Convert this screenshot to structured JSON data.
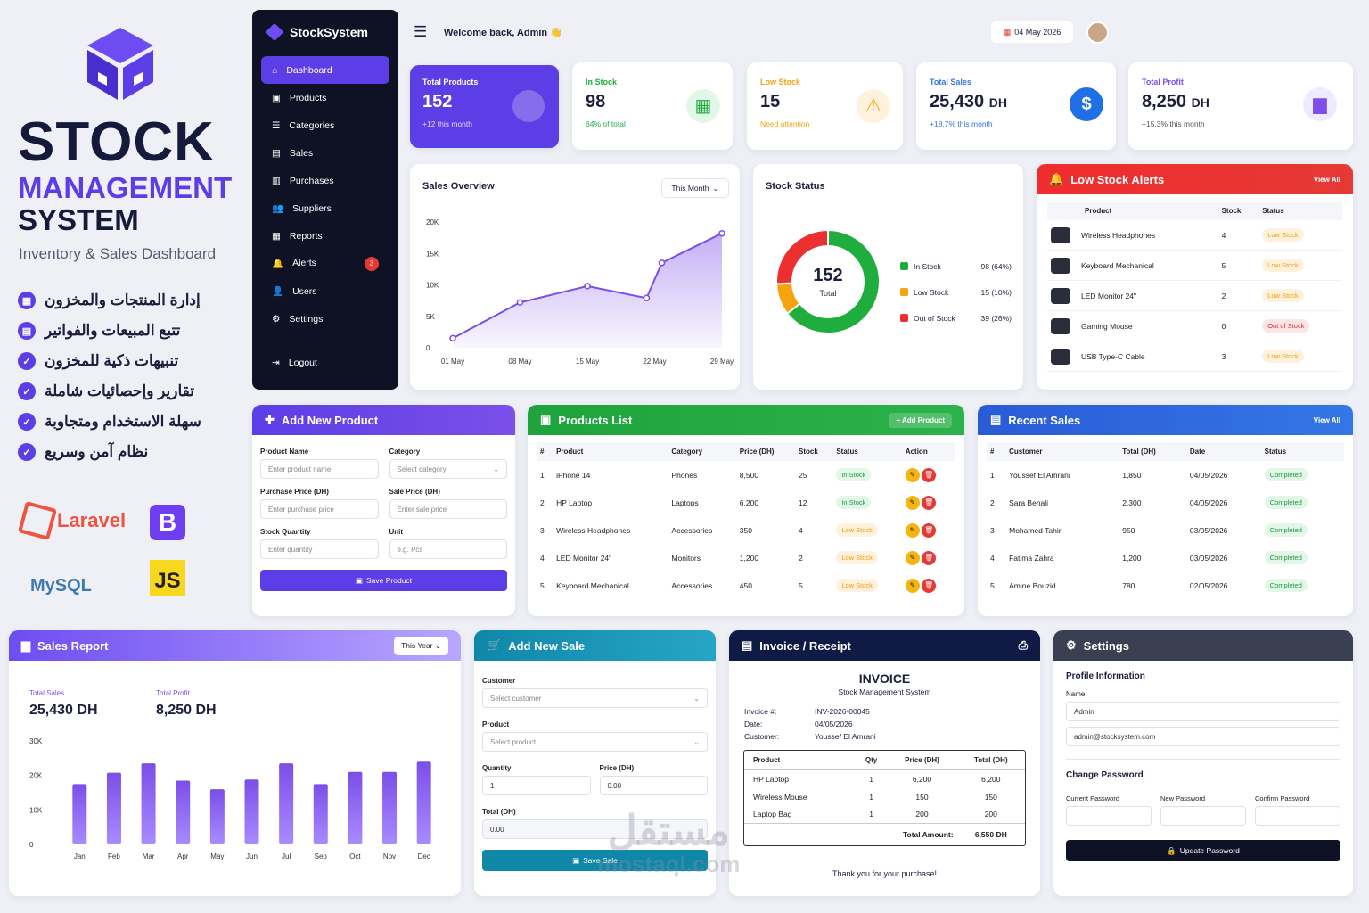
{
  "brand": {
    "title": "STOCK",
    "subtitle": "MANAGEMENT",
    "system": "SYSTEM",
    "tagline": "Inventory & Sales Dashboard"
  },
  "features": [
    "إدارة المنتجات والمخزون",
    "تتبع المبيعات والفواتير",
    "تنبيهات ذكية للمخزون",
    "تقارير وإحصائيات شاملة",
    "سهلة الاستخدام ومتجاوبة",
    "نظام آمن وسريع"
  ],
  "tech": {
    "laravel": "Laravel",
    "bootstrap": "B",
    "mysql": "MySQL",
    "js": "JS"
  },
  "sidebar": {
    "app": "StockSystem",
    "items": [
      "Dashboard",
      "Products",
      "Categories",
      "Sales",
      "Purchases",
      "Suppliers",
      "Reports",
      "Alerts",
      "Users",
      "Settings"
    ],
    "alerts_badge": "3",
    "logout": "Logout"
  },
  "topbar": {
    "welcome": "Welcome back, Admin 👋",
    "date": "04 May 2026"
  },
  "stats": [
    {
      "label": "Total Products",
      "value": "152",
      "sub": "+12 this month"
    },
    {
      "label": "In Stock",
      "value": "98",
      "sub": "64% of total"
    },
    {
      "label": "Low Stock",
      "value": "15",
      "sub": "Need attention"
    },
    {
      "label": "Total Sales",
      "value": "25,430",
      "unit": "DH",
      "sub": "+18.7% this month"
    },
    {
      "label": "Total Profit",
      "value": "8,250",
      "unit": "DH",
      "sub": "+15.3% this month"
    }
  ],
  "sales_overview": {
    "title": "Sales Overview",
    "filter": "This Month",
    "colors": {
      "line": "#7b4fe8"
    }
  },
  "chart_data": [
    {
      "type": "line",
      "title": "Sales Overview",
      "x": [
        "01 May",
        "08 May",
        "15 May",
        "22 May",
        "29 May"
      ],
      "points": [
        {
          "x": "01 May",
          "y": 1500
        },
        {
          "x": "08 May",
          "y": 7200
        },
        {
          "x": "15 May",
          "y": 9800
        },
        {
          "x": "22 May",
          "y": 7900
        },
        {
          "x": "29 May",
          "y": 13500
        },
        {
          "x": "29 May+",
          "y": 18200
        }
      ],
      "yticks": [
        "0",
        "5K",
        "10K",
        "15K",
        "20K"
      ],
      "ylim": [
        0,
        20000
      ]
    },
    {
      "type": "pie",
      "title": "Stock Status",
      "center_value": "152",
      "center_label": "Total",
      "slices": [
        {
          "name": "In Stock",
          "value": 98,
          "label": "98 (64%)",
          "color": "#1fae3e"
        },
        {
          "name": "Low Stock",
          "value": 15,
          "label": "15 (10%)",
          "color": "#f5a30f"
        },
        {
          "name": "Out of Stock",
          "value": 39,
          "label": "39 (26%)",
          "color": "#ec2f2f"
        }
      ]
    },
    {
      "type": "bar",
      "title": "Sales Report",
      "categories": [
        "Jan",
        "Feb",
        "Mar",
        "Apr",
        "May",
        "Jun",
        "Jul",
        "Sep",
        "Oct",
        "Nov",
        "Dec"
      ],
      "values": [
        17500,
        20800,
        23500,
        18500,
        16000,
        18800,
        23500,
        17500,
        21000,
        21000,
        24000
      ],
      "yticks": [
        "0",
        "10K",
        "20K",
        "30K"
      ],
      "ylim": [
        0,
        30000
      ]
    }
  ],
  "stock_status": {
    "title": "Stock Status"
  },
  "low_stock": {
    "title": "Low Stock Alerts",
    "view_all": "View All",
    "headers": [
      "Product",
      "Stock",
      "Status"
    ],
    "rows": [
      {
        "product": "Wireless Headphones",
        "stock": "4",
        "status": "Low Stock",
        "type": "low"
      },
      {
        "product": "Keyboard Mechanical",
        "stock": "5",
        "status": "Low Stock",
        "type": "low"
      },
      {
        "product": "LED Monitor 24\"",
        "stock": "2",
        "status": "Low Stock",
        "type": "low"
      },
      {
        "product": "Gaming Mouse",
        "stock": "0",
        "status": "Out of Stock",
        "type": "out"
      },
      {
        "product": "USB Type-C Cable",
        "stock": "3",
        "status": "Low Stock",
        "type": "low"
      }
    ]
  },
  "add_product": {
    "title": "Add New Product",
    "name_label": "Product Name",
    "name_ph": "Enter product name",
    "cat_label": "Category",
    "cat_ph": "Select category",
    "pp_label": "Purchase Price (DH)",
    "pp_ph": "Enter purchase price",
    "sp_label": "Sale Price (DH)",
    "sp_ph": "Enter sale price",
    "qty_label": "Stock Quantity",
    "qty_ph": "Enter quantity",
    "unit_label": "Unit",
    "unit_ph": "e.g. Pcs",
    "save": "Save Product"
  },
  "products": {
    "title": "Products List",
    "add": "+ Add Product",
    "headers": [
      "#",
      "Product",
      "Category",
      "Price (DH)",
      "Stock",
      "Status",
      "Action"
    ],
    "rows": [
      {
        "n": "1",
        "product": "iPhone 14",
        "category": "Phones",
        "price": "8,500",
        "stock": "25",
        "status": "In Stock",
        "type": "ok"
      },
      {
        "n": "2",
        "product": "HP Laptop",
        "category": "Laptops",
        "price": "6,200",
        "stock": "12",
        "status": "In Stock",
        "type": "ok"
      },
      {
        "n": "3",
        "product": "Wireless Headphones",
        "category": "Accessories",
        "price": "350",
        "stock": "4",
        "status": "Low Stock",
        "type": "low"
      },
      {
        "n": "4",
        "product": "LED Monitor 24\"",
        "category": "Monitors",
        "price": "1,200",
        "stock": "2",
        "status": "Low Stock",
        "type": "low"
      },
      {
        "n": "5",
        "product": "Keyboard Mechanical",
        "category": "Accessories",
        "price": "450",
        "stock": "5",
        "status": "Low Stock",
        "type": "low"
      }
    ]
  },
  "recent_sales": {
    "title": "Recent Sales",
    "view_all": "View All",
    "headers": [
      "#",
      "Customer",
      "Total (DH)",
      "Date",
      "Status"
    ],
    "rows": [
      {
        "n": "1",
        "customer": "Youssef El Amrani",
        "total": "1,850",
        "date": "04/05/2026",
        "status": "Completed"
      },
      {
        "n": "2",
        "customer": "Sara Benali",
        "total": "2,300",
        "date": "04/05/2026",
        "status": "Completed"
      },
      {
        "n": "3",
        "customer": "Mohamed Tahiri",
        "total": "950",
        "date": "03/05/2026",
        "status": "Completed"
      },
      {
        "n": "4",
        "customer": "Fatima Zahra",
        "total": "1,200",
        "date": "03/05/2026",
        "status": "Completed"
      },
      {
        "n": "5",
        "customer": "Amine Bouzid",
        "total": "780",
        "date": "02/05/2026",
        "status": "Completed"
      }
    ]
  },
  "sales_report": {
    "title": "Sales Report",
    "filter": "This Year",
    "total_sales_label": "Total Sales",
    "total_sales": "25,430 DH",
    "total_profit_label": "Total Profit",
    "total_profit": "8,250 DH"
  },
  "add_sale": {
    "title": "Add New Sale",
    "customer_label": "Customer",
    "customer_ph": "Select customer",
    "product_label": "Product",
    "product_ph": "Select product",
    "qty_label": "Quantity",
    "qty_val": "1",
    "price_label": "Price (DH)",
    "price_val": "0.00",
    "total_label": "Total (DH)",
    "total_val": "0.00",
    "save": "Save Sale"
  },
  "invoice": {
    "title": "Invoice / Receipt",
    "heading": "INVOICE",
    "company": "Stock Management System",
    "no_label": "Invoice #:",
    "no": "INV-2026-00045",
    "date_label": "Date:",
    "date": "04/05/2026",
    "cust_label": "Customer:",
    "cust": "Youssef El Amrani",
    "headers": [
      "Product",
      "Qty",
      "Price (DH)",
      "Total (DH)"
    ],
    "rows": [
      {
        "product": "HP Laptop",
        "qty": "1",
        "price": "6,200",
        "total": "6,200"
      },
      {
        "product": "Wireless Mouse",
        "qty": "1",
        "price": "150",
        "total": "150"
      },
      {
        "product": "Laptop Bag",
        "qty": "1",
        "price": "200",
        "total": "200"
      }
    ],
    "total_label": "Total Amount:",
    "total": "6,550 DH",
    "thanks": "Thank you for your purchase!"
  },
  "settings": {
    "title": "Settings",
    "profile": "Profile Information",
    "name_label": "Name",
    "name": "Admin",
    "email": "admin@stocksystem.com",
    "change": "Change Password",
    "current": "Current Password",
    "new": "New Password",
    "confirm": "Confirm Password",
    "update": "Update Password"
  },
  "watermark": {
    "arabic": "مستقل",
    "latin": "mostaql.com"
  }
}
